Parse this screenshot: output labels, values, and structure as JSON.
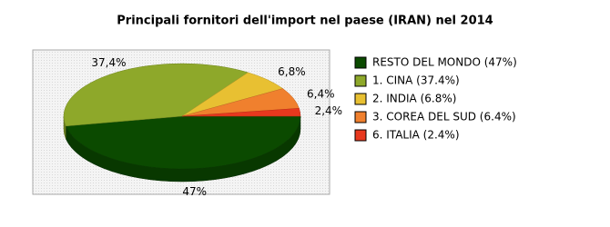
{
  "chart_data": {
    "type": "pie",
    "title": "Principali fornitori dell'import nel paese (IRAN) nel 2014",
    "categories": [
      "RESTO DEL MONDO (47%)",
      "1. CINA (37.4%)",
      "2. INDIA (6.8%)",
      "3. COREA DEL SUD (6.4%)",
      "6. ITALIA (2.4%)"
    ],
    "values": [
      47,
      37.4,
      6.8,
      6.4,
      2.4
    ],
    "value_labels": [
      "47%",
      "37,4%",
      "6,8%",
      "6,4%",
      "2,4%"
    ],
    "colors": [
      "#0b4a00",
      "#8ea82a",
      "#e8c032",
      "#f0802e",
      "#e8381e"
    ],
    "legend": "right"
  }
}
